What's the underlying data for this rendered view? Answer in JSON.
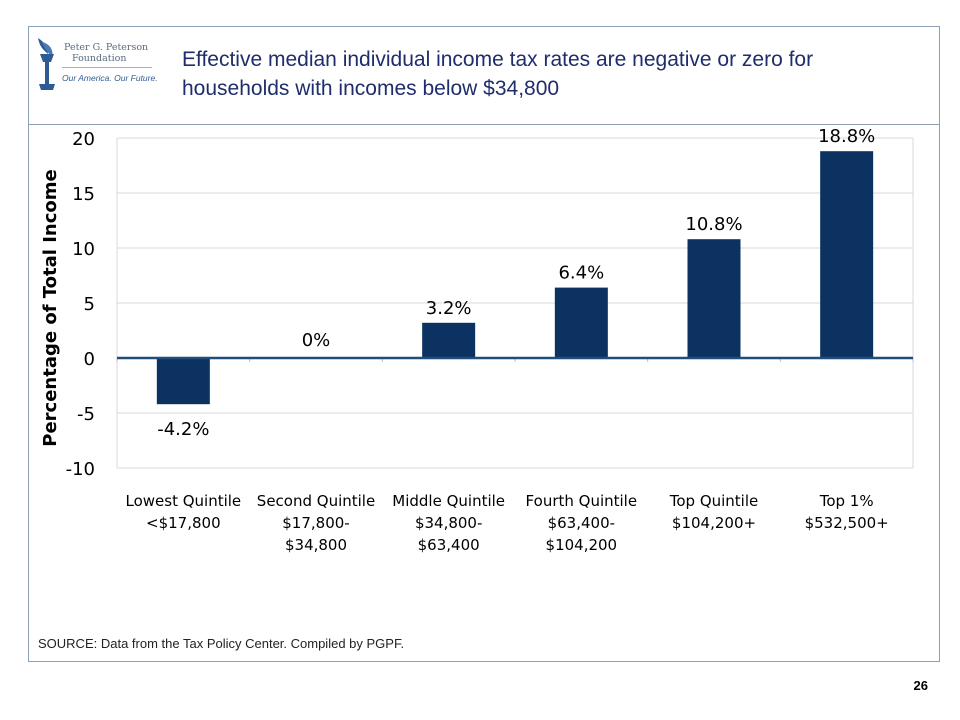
{
  "slide": {
    "title": "Effective median individual income tax rates are negative or zero for households with incomes below $34,800",
    "source": "SOURCE: Data from the Tax Policy Center. Compiled by PGPF.",
    "page_number": "26"
  },
  "logo": {
    "line1": "Peter G. Peterson",
    "line2": "Foundation",
    "tagline": "Our America. Our Future."
  },
  "colors": {
    "bar": "#0b3260",
    "zero_line": "#1f4e79",
    "gridline": "#d9d9d9",
    "title": "#1f2d6b"
  },
  "chart_data": {
    "type": "bar",
    "categories": [
      [
        "Lowest Quintile",
        "<$17,800"
      ],
      [
        "Second Quintile",
        "$17,800-",
        "$34,800"
      ],
      [
        "Middle Quintile",
        "$34,800-",
        "$63,400"
      ],
      [
        "Fourth Quintile",
        "$63,400-",
        "$104,200"
      ],
      [
        "Top Quintile",
        "$104,200+"
      ],
      [
        "Top 1%",
        "$532,500+"
      ]
    ],
    "values": [
      -4.2,
      0,
      3.2,
      6.4,
      10.8,
      18.8
    ],
    "data_labels": [
      "-4.2%",
      "0%",
      "3.2%",
      "6.4%",
      "10.8%",
      "18.8%"
    ],
    "ylabel": "Percentage of Total Income",
    "xlabel": "",
    "ylim": [
      -10,
      20
    ],
    "yticks": [
      20,
      15,
      10,
      5,
      0,
      -5,
      -10
    ],
    "grid": true
  }
}
